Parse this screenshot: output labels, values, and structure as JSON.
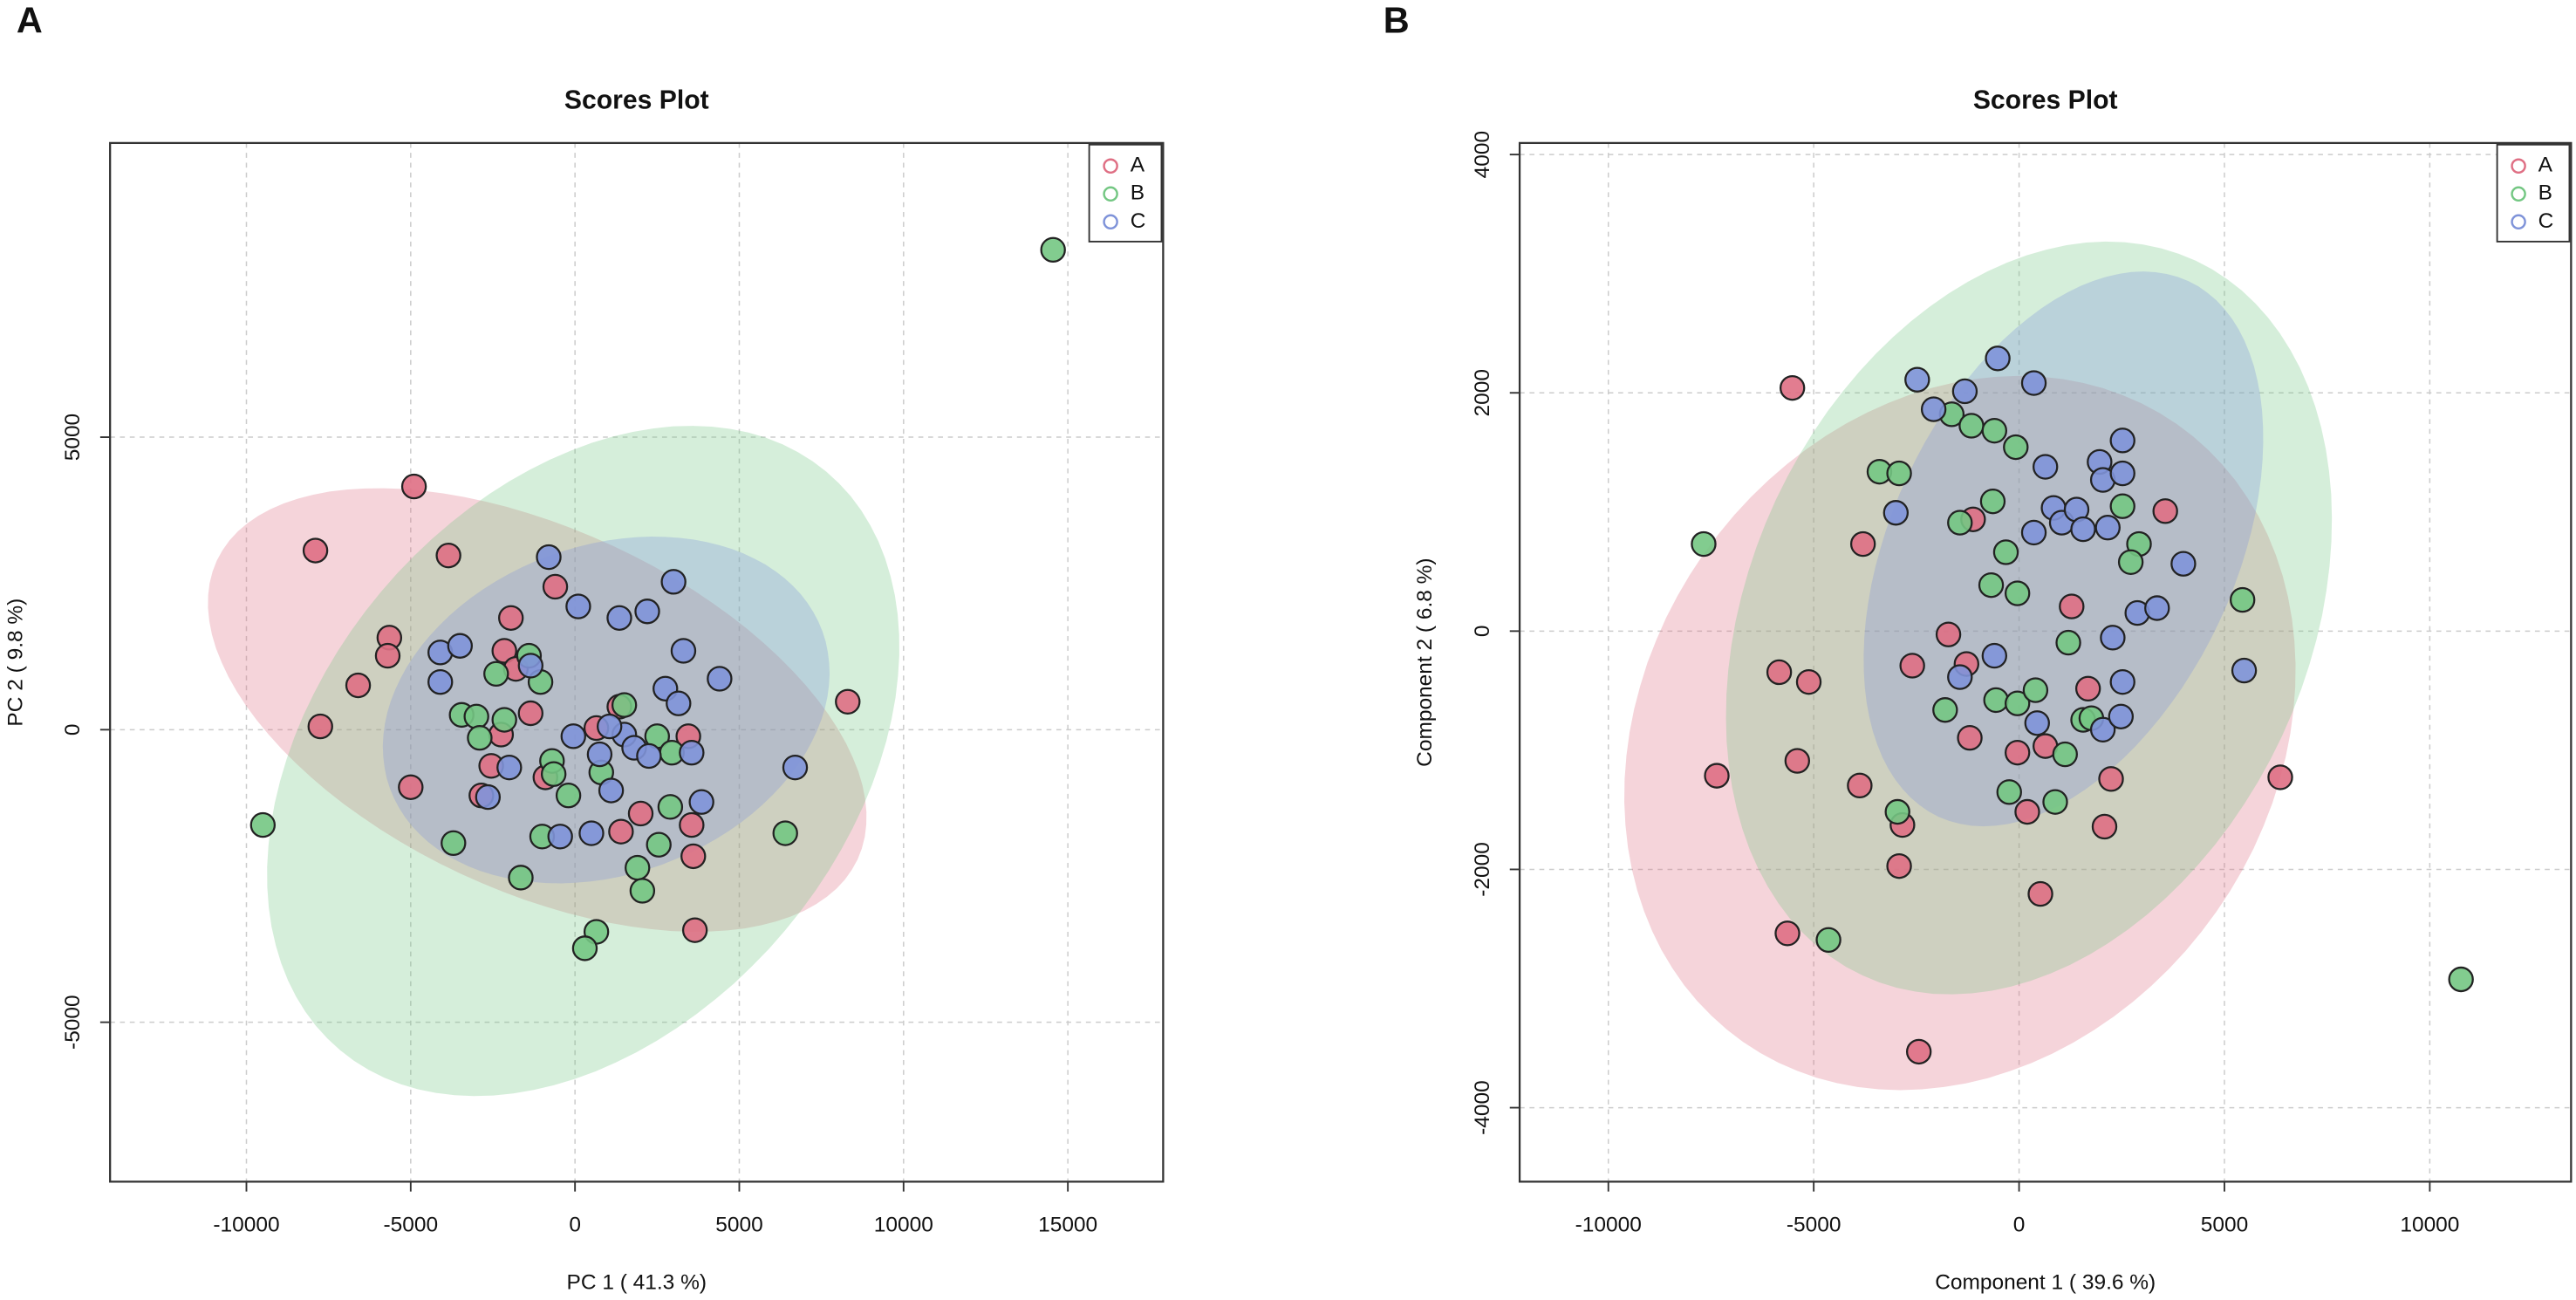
{
  "chart_data": [
    {
      "type": "scatter",
      "panel_label": "A",
      "title": "Scores Plot",
      "x_label": "PC 1 ( 41.3 %)",
      "y_label": "PC 2 ( 9.8 %)",
      "xlim": [
        -14150,
        17900
      ],
      "ylim": [
        -7725,
        10028
      ],
      "xticks": [
        -10000,
        -5000,
        0,
        5000,
        10000,
        15000
      ],
      "yticks": [
        -5000,
        0,
        5000
      ],
      "grid": true,
      "legend": "top-right",
      "series": [
        {
          "name": "A",
          "color": "#df6f84",
          "x": [
            -4900,
            -7900,
            -3850,
            -5650,
            -5700,
            -6600,
            -7750,
            -5000,
            -600,
            -1950,
            -2150,
            -1800,
            -1350,
            -2250,
            -2550,
            -2850,
            -900,
            650,
            1350,
            2000,
            1400,
            3450,
            3550,
            3600,
            3650,
            8300
          ],
          "y": [
            4157,
            3062,
            2978,
            1573,
            1264,
            758,
            56,
            -983,
            2444,
            1910,
            1348,
            1039,
            281,
            -84,
            -618,
            -1124,
            -815,
            28,
            393,
            -1433,
            -1742,
            -112,
            -1629,
            -2163,
            -3427,
            478
          ],
          "ellipse": {
            "center": [
              -1150,
              337
            ],
            "axes": [
              [
                9750,
                -2556
              ],
              [
                -2325,
                -2800
              ]
            ]
          }
        },
        {
          "name": "B",
          "color": "#74c783",
          "x": [
            14550,
            -9500,
            -3700,
            -1650,
            -3450,
            -3000,
            -2900,
            -2150,
            -2400,
            -1400,
            -1050,
            -700,
            -650,
            -200,
            -1000,
            800,
            1500,
            1900,
            2050,
            2500,
            2950,
            2900,
            2550,
            650,
            300,
            6400
          ],
          "y": [
            8202,
            -1629,
            -1938,
            -2528,
            253,
            225,
            -140,
            169,
            955,
            1264,
            815,
            -534,
            -758,
            -1124,
            -1826,
            -730,
            421,
            -2360,
            -2753,
            -112,
            -393,
            -1320,
            -1966,
            -3455,
            -3736,
            -1770
          ],
          "ellipse": {
            "center": [
              250,
              -534
            ],
            "axes": [
              [
                7400,
                4944
              ],
              [
                6150,
                -2893
              ]
            ]
          }
        },
        {
          "name": "C",
          "color": "#7f93d9",
          "x": [
            -800,
            -4100,
            -3500,
            -4100,
            100,
            1350,
            2200,
            3000,
            3300,
            2750,
            3150,
            4400,
            6700,
            3850,
            3550,
            -50,
            750,
            1500,
            1800,
            2250,
            1100,
            1050,
            -450,
            500,
            -2000,
            -2650,
            -1350
          ],
          "y": [
            2950,
            1320,
            1433,
            815,
            2107,
            1910,
            2022,
            2528,
            1348,
            702,
            449,
            871,
            -646,
            -1236,
            -393,
            -112,
            -421,
            -84,
            -309,
            -449,
            -1039,
            56,
            -1826,
            -1770,
            -646,
            -1152,
            1095
          ],
          "ellipse": {
            "center": [
              950,
              337
            ],
            "axes": [
              [
                6580,
                1345
              ],
              [
                1710,
                -2640
              ]
            ]
          }
        }
      ]
    },
    {
      "type": "scatter",
      "panel_label": "B",
      "title": "Scores Plot",
      "x_label": "Component 1 ( 39.6 %)",
      "y_label": "Component 2 ( 6.8 %)",
      "xlim": [
        -12160,
        13440
      ],
      "ylim": [
        -4621,
        4097
      ],
      "xticks": [
        -10000,
        -5000,
        0,
        5000,
        10000
      ],
      "yticks": [
        -4000,
        -2000,
        0,
        2000,
        4000
      ],
      "grid": true,
      "legend": "top-right",
      "series": [
        {
          "name": "A",
          "color": "#df6f84",
          "x": [
            -5520,
            -3800,
            -1120,
            -5840,
            -5120,
            -2600,
            -1720,
            -1280,
            -1200,
            -7360,
            -5400,
            -3880,
            -2840,
            -2920,
            -5640,
            -2440,
            -40,
            200,
            640,
            520,
            1280,
            1680,
            2240,
            2080,
            3560,
            6360
          ],
          "y": [
            2041,
            731,
            938,
            -345,
            -427,
            -290,
            -28,
            -276,
            -896,
            -1214,
            -1089,
            -1296,
            -1627,
            -1972,
            -2537,
            -3530,
            -1020,
            -1517,
            -965,
            -2206,
            207,
            -483,
            -1241,
            -1641,
            1007,
            -1227
          ],
          "ellipse": {
            "center": [
              -1440,
              -855
            ],
            "axes": [
              [
                5280,
                2593
              ],
              [
                6240,
                -1503
              ]
            ]
          }
        },
        {
          "name": "B",
          "color": "#74c783",
          "x": [
            -7680,
            -4640,
            -2960,
            -3400,
            -2920,
            -1640,
            -1160,
            -600,
            -80,
            -640,
            -1440,
            -320,
            -680,
            -40,
            -560,
            -40,
            400,
            -1800,
            1200,
            1120,
            1560,
            1760,
            -240,
            880,
            2520,
            2920,
            2720,
            5440,
            10760
          ],
          "y": [
            731,
            -2592,
            -1517,
            1338,
            1324,
            1820,
            1724,
            1682,
            1544,
            1089,
            910,
            662,
            386,
            317,
            -579,
            -607,
            -496,
            -662,
            -97,
            -1034,
            -745,
            -731,
            -1351,
            -1434,
            1048,
            731,
            579,
            262,
            -2923
          ],
          "ellipse": {
            "center": [
              240,
              110
            ],
            "axes": [
              [
                4060,
                2999
              ],
              [
                6160,
                -993
              ]
            ]
          }
        },
        {
          "name": "C",
          "color": "#7f93d9",
          "x": [
            -2480,
            -1320,
            -520,
            360,
            -2080,
            640,
            840,
            1040,
            1400,
            1560,
            2160,
            1960,
            2040,
            2520,
            2520,
            360,
            -3000,
            -600,
            -1440,
            440,
            2040,
            2480,
            2520,
            2280,
            2880,
            3360,
            4000,
            5480
          ],
          "y": [
            2110,
            2013,
            2289,
            2082,
            1862,
            1379,
            1034,
            910,
            1020,
            855,
            869,
            1420,
            1269,
            1600,
            1324,
            827,
            993,
            -207,
            -386,
            -772,
            -827,
            -717,
            -427,
            -55,
            152,
            193,
            565,
            -331
          ],
          "ellipse": {
            "center": [
              1080,
              690
            ],
            "axes": [
              [
                3040,
                2248
              ],
              [
                3800,
                -607
              ]
            ]
          }
        }
      ]
    }
  ]
}
